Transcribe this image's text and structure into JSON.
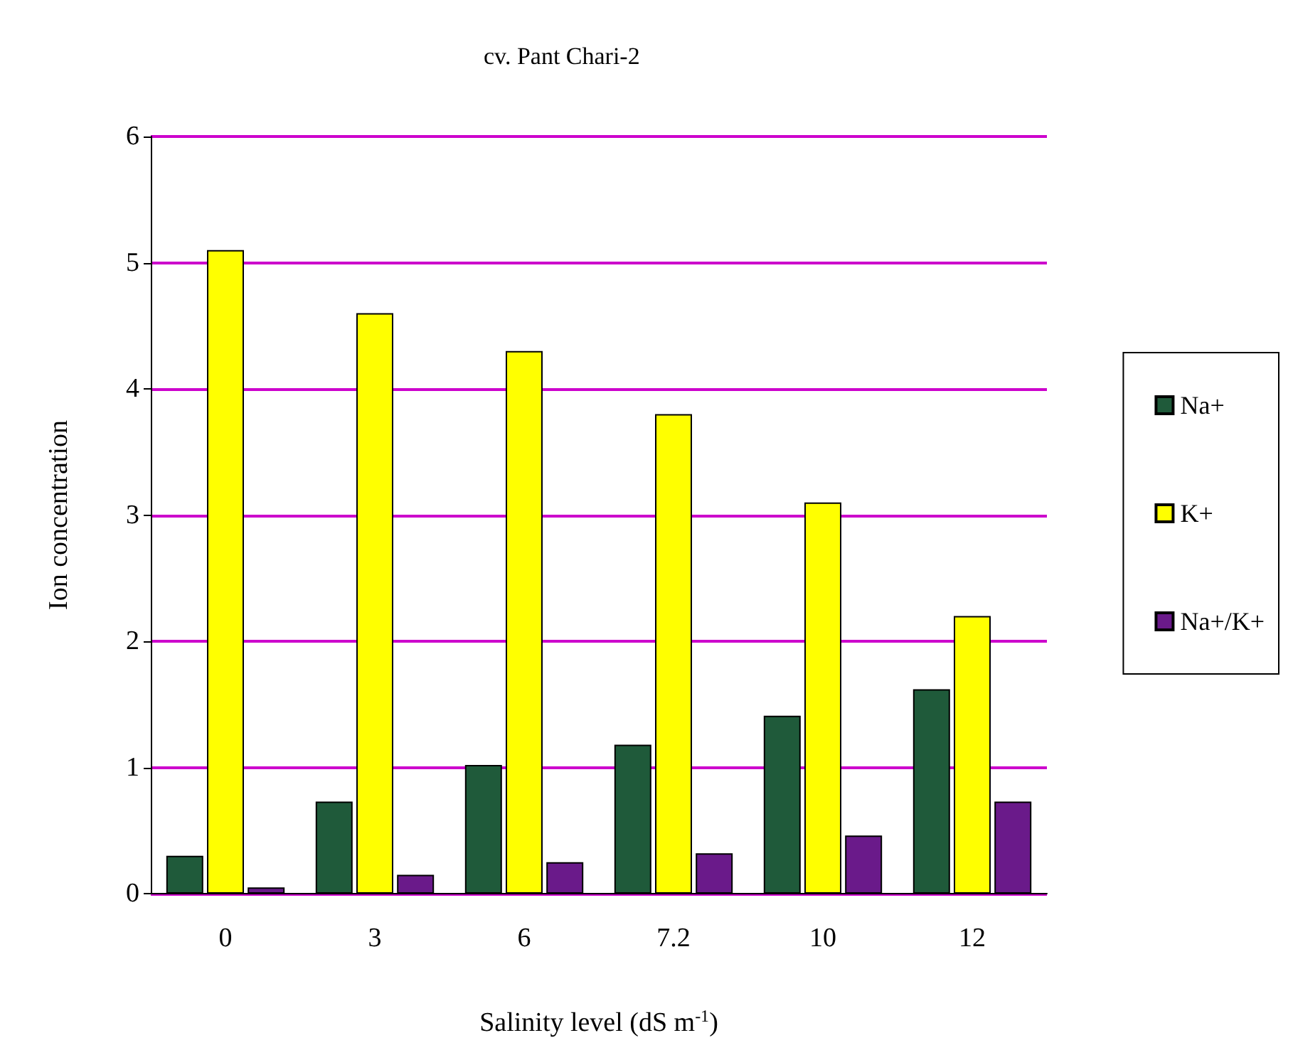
{
  "chart_data": {
    "type": "bar",
    "title": "cv. Pant Chari-2",
    "xlabel": "Salinity level (dS m$^{-1}$)",
    "ylabel": "Ion concentration",
    "categories": [
      "0",
      "3",
      "6",
      "7.2",
      "10",
      "12"
    ],
    "series": [
      {
        "name": "Na+",
        "color": "#1f5a3a",
        "values": [
          0.3,
          0.73,
          1.02,
          1.18,
          1.41,
          1.62
        ]
      },
      {
        "name": "K+",
        "color": "#ffff00",
        "values": [
          5.1,
          4.6,
          4.3,
          3.8,
          3.1,
          2.2
        ]
      },
      {
        "name": "Na+/K+",
        "color": "#6a1a8a",
        "values": [
          0.05,
          0.15,
          0.25,
          0.32,
          0.46,
          0.73
        ]
      }
    ],
    "ylim": [
      0,
      6
    ],
    "yticks": [
      0,
      1,
      2,
      3,
      4,
      5,
      6
    ],
    "grid": "y",
    "legend": "right"
  }
}
